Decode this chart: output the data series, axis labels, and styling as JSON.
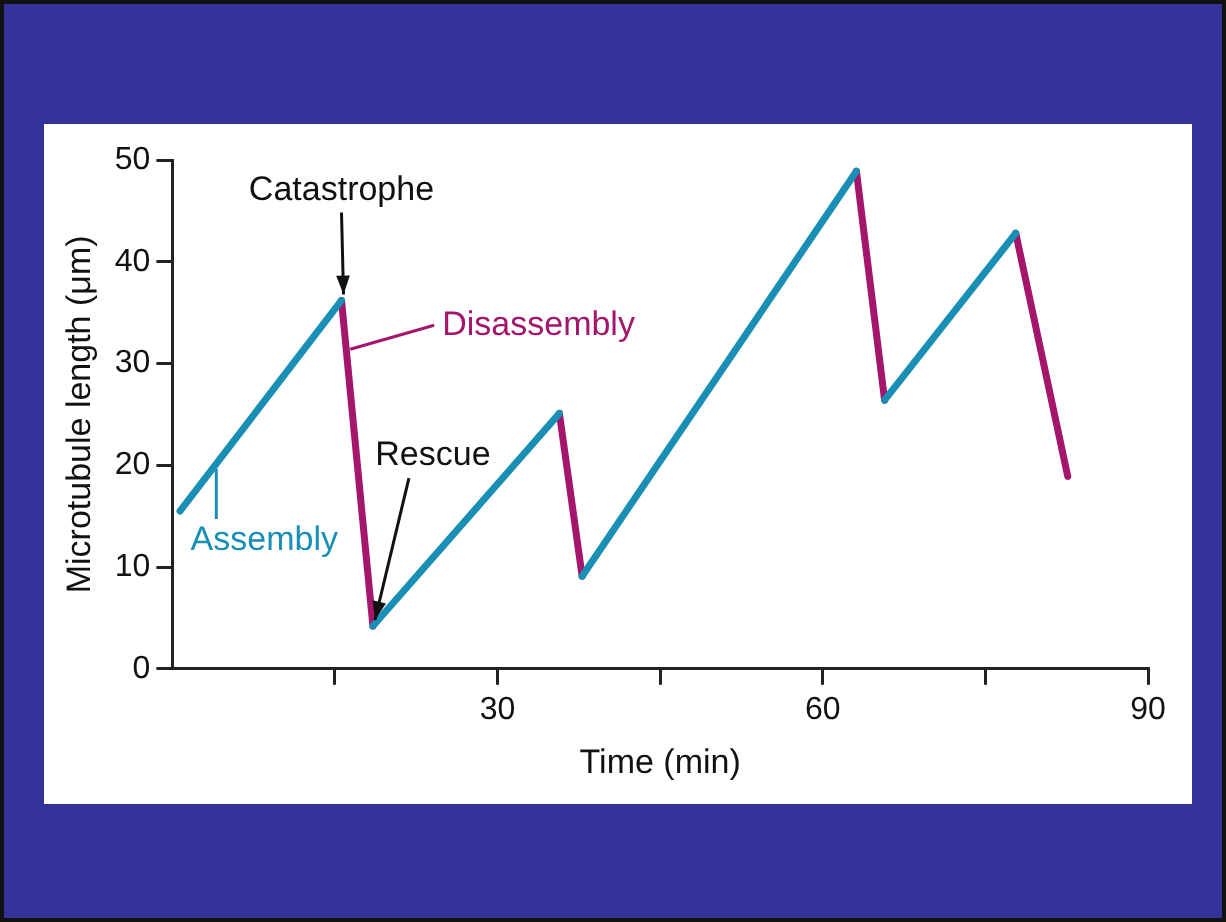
{
  "chart_data": {
    "type": "line",
    "xlabel": "Time (min)",
    "ylabel": "Microtubule length (μm)",
    "xlim": [
      0,
      90
    ],
    "xticks": [
      {
        "value": 15,
        "label": null
      },
      30,
      {
        "value": 45,
        "label": null
      },
      60,
      {
        "value": 75,
        "label": null
      },
      90
    ],
    "ylim": [
      0,
      50
    ],
    "yticks": [
      0,
      10,
      20,
      30,
      40,
      50
    ],
    "grid": false,
    "marker": "none",
    "line_style": "solid",
    "series": [
      {
        "name": "Assembly",
        "color": "#1a8fb5",
        "x": [
          0.7,
          15.6,
          17,
          18.5,
          35.7,
          36.7,
          37.8,
          63.1,
          64.4,
          65.7,
          77.8
        ],
        "values": [
          15.5,
          36.2,
          null,
          4.2,
          25.1,
          null,
          9.1,
          48.9,
          null,
          26.4,
          42.8
        ]
      },
      {
        "name": "Disassembly",
        "color": "#a3166c",
        "x": [
          15.6,
          18.5,
          27,
          35.7,
          37.8,
          50,
          63.1,
          65.7,
          71,
          77.8,
          82.6
        ],
        "values": [
          36.2,
          4.2,
          null,
          25.1,
          9.1,
          null,
          48.9,
          26.4,
          null,
          42.8,
          18.9
        ]
      }
    ],
    "annotations": [
      {
        "text": "Catastrophe",
        "x": 15.6,
        "y": 36.2
      },
      {
        "text": "Rescue",
        "x": 18.5,
        "y": 4.2
      }
    ]
  }
}
